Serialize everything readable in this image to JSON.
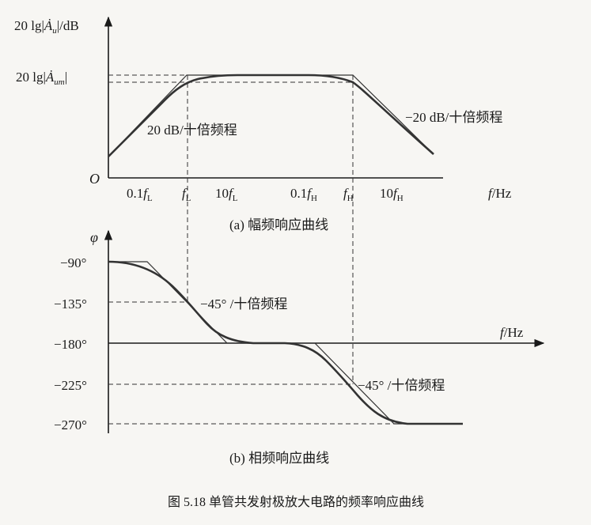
{
  "top_plot": {
    "y_axis_label": "20 lg|Ȧu|/dB",
    "y_axis_label_main": "20 lg|",
    "y_axis_label_sym": "Ȧ",
    "y_axis_label_sub": "u",
    "y_axis_label_tail": "|/dB",
    "mid_label_main": "20 lg|",
    "mid_label_sym": "Ȧ",
    "mid_label_sub": "um",
    "mid_label_tail": "|",
    "origin": "O",
    "x_ticks": [
      "0.1fL",
      "fL",
      "10fL",
      "0.1fH",
      "fH",
      "10fH"
    ],
    "x_axis_label": "f/Hz",
    "rise_slope_label": "20 dB/十倍频程",
    "fall_slope_label": "−20 dB/十倍频程",
    "caption": "(a) 幅频响应曲线"
  },
  "bottom_plot": {
    "y_axis_label": "φ",
    "y_ticks": [
      "−90°",
      "−135°",
      "−180°",
      "−225°",
      "−270°"
    ],
    "x_axis_label": "f/Hz",
    "slope_label_1": "−45° /十倍频程",
    "slope_label_2": "−45° /十倍频程",
    "caption": "(b) 相频响应曲线"
  },
  "figure_caption": "图 5.18   单管共发射极放大电路的频率响应曲线"
}
